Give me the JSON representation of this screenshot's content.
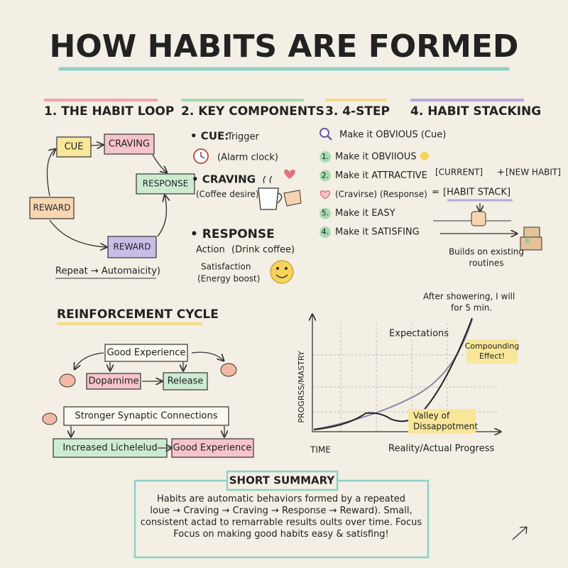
{
  "header": {
    "title": "HOW HABITS ARE FORMED"
  },
  "habit_loop": {
    "title": "1. THE HABIT LOOP",
    "nodes": [
      "CUE",
      "CRAVING",
      "RESPONSE",
      "REWARD",
      "REWARD"
    ],
    "footer": "Repeat → Automaicity)"
  },
  "key_components": {
    "title": "2. KEY COMPONENTS",
    "cue": {
      "label": "• CUE:",
      "text": "Trigger",
      "example": "(Alarm clock)"
    },
    "craving": {
      "label": "• CRAVING",
      "example": "(Coffee desire)"
    },
    "response": {
      "label": "• RESPONSE",
      "action": "Action",
      "action_example": "(Drink coffee)",
      "satisfaction": "Satisfaction",
      "satisfaction_example": "(Energy boost)"
    }
  },
  "four_step": {
    "title": "3. 4-STEP",
    "intro": "Make it OBVIOUS (Cue)",
    "steps": [
      {
        "badge": "1.",
        "text": "Make it OBVIIOUS"
      },
      {
        "badge": "2.",
        "text": "Make it ATTRACTIVE"
      },
      {
        "text": "(Cravirse) (Response)"
      },
      {
        "badge": "5.",
        "text": "Make it EASY"
      },
      {
        "badge": "4.",
        "text": "Make it SATISFING"
      }
    ]
  },
  "habit_stacking": {
    "title": "4. HABIT STACKING",
    "current": "[CURRENT]",
    "plus": "+",
    "new_habit": "[NEW HABIT]",
    "equals": "=",
    "stack": "[HABIT STACK]",
    "note": [
      "Builds on existing",
      "routines"
    ]
  },
  "reinforcement": {
    "title": "REINFORCEMENT CYCLE",
    "nodes": [
      "Good Experience",
      "Dopamime",
      "Release",
      "Stronger Synaptic Connections",
      "Increased Lichelelud",
      "Good Experience"
    ]
  },
  "progress_graph": {
    "note": [
      "After showering, I will",
      "for 5 min."
    ],
    "expectations": "Expectations",
    "compounding": [
      "Compounding",
      "Effect!"
    ],
    "valley": [
      "Valley of",
      "Dissappotment"
    ],
    "y_label": "PROGRSS/MASTRY",
    "x_label": "TIME",
    "reality": "Reality/Actual Progress"
  },
  "summary": {
    "title": "SHORT SUMMARY",
    "lines": [
      "Habits are automatic behaviors formed by a repeated",
      "loue → Craving → Craving → Response → Reward). Small,",
      "consistent actad to remarrable results oults over time. Focus",
      "Focus on making good habits easy & satisfing!"
    ]
  }
}
